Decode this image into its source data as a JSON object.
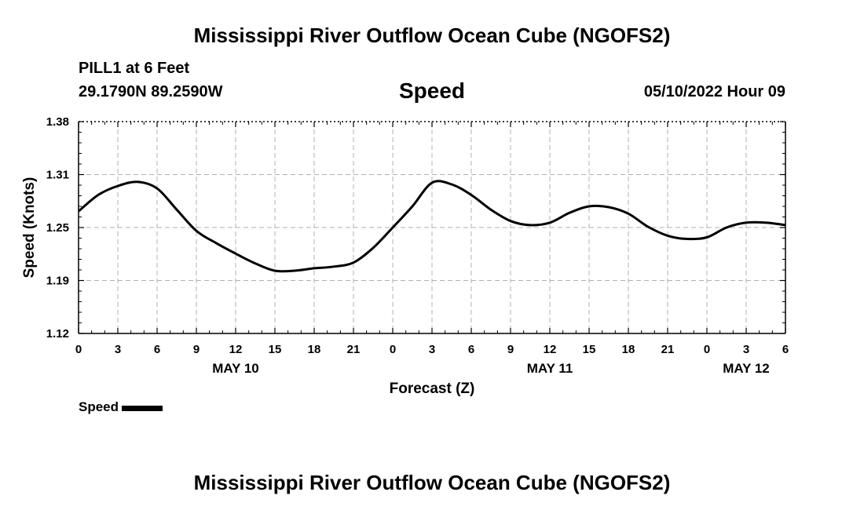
{
  "header": {
    "title": "Mississippi River Outflow Ocean Cube (NGOFS2)",
    "station": "PILL1 at 6 Feet",
    "coords": "29.1790N  89.2590W",
    "variable": "Speed",
    "date": "05/10/2022 Hour 09"
  },
  "footer": {
    "title": "Mississippi River Outflow Ocean Cube (NGOFS2)"
  },
  "legend": {
    "label": "Speed"
  },
  "chart_data": {
    "type": "line",
    "title": "Speed",
    "xlabel": "Forecast (Z)",
    "ylabel": "Speed (Knots)",
    "ylim": [
      1.12,
      1.38
    ],
    "yticks": [
      "1.12",
      "1.19",
      "1.25",
      "1.31",
      "1.38"
    ],
    "xlim": [
      0,
      54
    ],
    "xticks": [
      "0",
      "3",
      "6",
      "9",
      "12",
      "15",
      "18",
      "21",
      "0",
      "3",
      "6",
      "9",
      "12",
      "15",
      "18",
      "21",
      "0",
      "3",
      "6"
    ],
    "date_labels": [
      {
        "hour": 12,
        "label": "MAY 10"
      },
      {
        "hour": 36,
        "label": "MAY 11"
      },
      {
        "hour": 51,
        "label": "MAY 12"
      }
    ],
    "grid": true,
    "legend_position": "bottom-left",
    "series": [
      {
        "name": "Speed",
        "color": "#000000",
        "x": [
          0,
          1.5,
          3,
          4.5,
          6,
          7.5,
          9,
          10.5,
          12,
          13.5,
          15,
          16.5,
          18,
          19.5,
          21,
          22.5,
          24,
          25.5,
          27,
          28.5,
          30,
          31.5,
          33,
          34.5,
          36,
          37.5,
          39,
          40.5,
          42,
          43.5,
          45,
          46.5,
          48,
          49.5,
          51,
          52.5,
          54
        ],
        "y": [
          1.27,
          1.29,
          1.301,
          1.306,
          1.298,
          1.272,
          1.246,
          1.231,
          1.218,
          1.206,
          1.197,
          1.197,
          1.2,
          1.202,
          1.207,
          1.225,
          1.25,
          1.276,
          1.305,
          1.303,
          1.29,
          1.272,
          1.258,
          1.253,
          1.256,
          1.268,
          1.276,
          1.275,
          1.267,
          1.251,
          1.24,
          1.236,
          1.238,
          1.25,
          1.256,
          1.256,
          1.253
        ]
      }
    ]
  }
}
